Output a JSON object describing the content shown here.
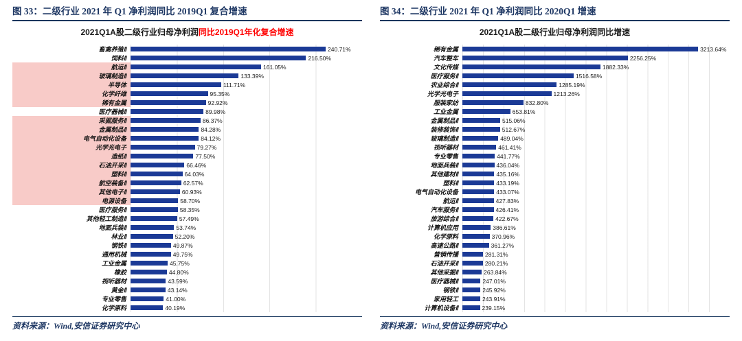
{
  "theme": {
    "header_color": "#1f3864",
    "rule_color": "#17365d",
    "bar_color": "#1b3a96",
    "highlight_color": "#f8cbc8",
    "title_red_color": "#ff0000"
  },
  "figures": [
    {
      "header": "图 33：二级行业 2021 年 Q1 净利润同比 2019Q1 复合增速",
      "source": "资料来源：Wind,安信证券研究中心"
    },
    {
      "header": "图 34：二级行业 2021 年 Q1 净利润同比 2020Q1 增速",
      "source": "资料来源：Wind,安信证券研究中心"
    }
  ],
  "chart_data": [
    {
      "type": "bar",
      "orientation": "horizontal",
      "title_black": "2021Q1A股二级行业归母净利润",
      "title_red": "同比2019Q1年化复合增速",
      "value_suffix": "%",
      "axis_max": 250,
      "gridline_step": 50,
      "bar_color": "#1b3a96",
      "highlight_color": "#f8cbc8",
      "categories": [
        "畜禽养殖Ⅱ",
        "饲料Ⅱ",
        "航运Ⅱ",
        "玻璃制造Ⅱ",
        "半导体",
        "化学纤维",
        "稀有金属",
        "医疗器械Ⅱ",
        "采掘服务Ⅱ",
        "金属制品Ⅱ",
        "电气自动化设备",
        "光学光电子",
        "造纸Ⅱ",
        "石油开采Ⅱ",
        "塑料Ⅱ",
        "航空装备Ⅱ",
        "其他电子Ⅱ",
        "电源设备",
        "医疗服务Ⅱ",
        "其他轻工制造Ⅱ",
        "地面兵装Ⅱ",
        "林业Ⅱ",
        "钢铁Ⅱ",
        "通用机械",
        "工业金属",
        "橡胶",
        "视听器材",
        "黄金Ⅱ",
        "专业零售",
        "化学原料"
      ],
      "values": [
        240.71,
        216.5,
        161.05,
        133.39,
        111.71,
        95.35,
        92.92,
        89.98,
        86.37,
        84.28,
        84.12,
        79.27,
        77.5,
        66.46,
        64.03,
        62.57,
        60.93,
        58.7,
        58.35,
        57.49,
        53.74,
        52.2,
        49.87,
        49.75,
        45.75,
        44.8,
        43.59,
        43.14,
        41.0,
        40.19
      ],
      "highlighted_indices": [
        2,
        3,
        4,
        5,
        6,
        8,
        9,
        10,
        11,
        12,
        13,
        14,
        15,
        16,
        17
      ]
    },
    {
      "type": "bar",
      "orientation": "horizontal",
      "title_black": "2021Q1A股二级行业归母净利润同比增速",
      "title_red": "",
      "value_suffix": "%",
      "axis_max": 3250,
      "gridline_step": 250,
      "bar_color": "#1b3a96",
      "highlight_color": "#f8cbc8",
      "categories": [
        "稀有金属",
        "汽车整车",
        "文化传媒",
        "医疗服务Ⅱ",
        "农业综合Ⅱ",
        "光学光电子",
        "服装家纺",
        "工业金属",
        "金属制品Ⅱ",
        "装修装饰Ⅱ",
        "玻璃制造Ⅱ",
        "视听器材",
        "专业零售",
        "地面兵装Ⅱ",
        "其他建材Ⅱ",
        "塑料Ⅱ",
        "电气自动化设备",
        "航运Ⅱ",
        "汽车服务Ⅱ",
        "旅游综合Ⅱ",
        "计算机应用",
        "化学原料",
        "高速公路Ⅱ",
        "营销传播",
        "石油开采Ⅱ",
        "其他采掘Ⅱ",
        "医疗器械Ⅱ",
        "钢铁Ⅱ",
        "家用轻工",
        "计算机设备Ⅱ"
      ],
      "values": [
        3213.64,
        2256.25,
        1882.33,
        1516.58,
        1285.19,
        1213.26,
        832.8,
        653.81,
        515.06,
        512.67,
        489.04,
        461.41,
        441.77,
        436.04,
        435.16,
        433.19,
        433.07,
        427.83,
        426.41,
        422.67,
        386.61,
        370.96,
        361.27,
        281.31,
        280.21,
        263.84,
        247.01,
        245.92,
        243.91,
        239.15
      ],
      "highlighted_indices": []
    }
  ]
}
